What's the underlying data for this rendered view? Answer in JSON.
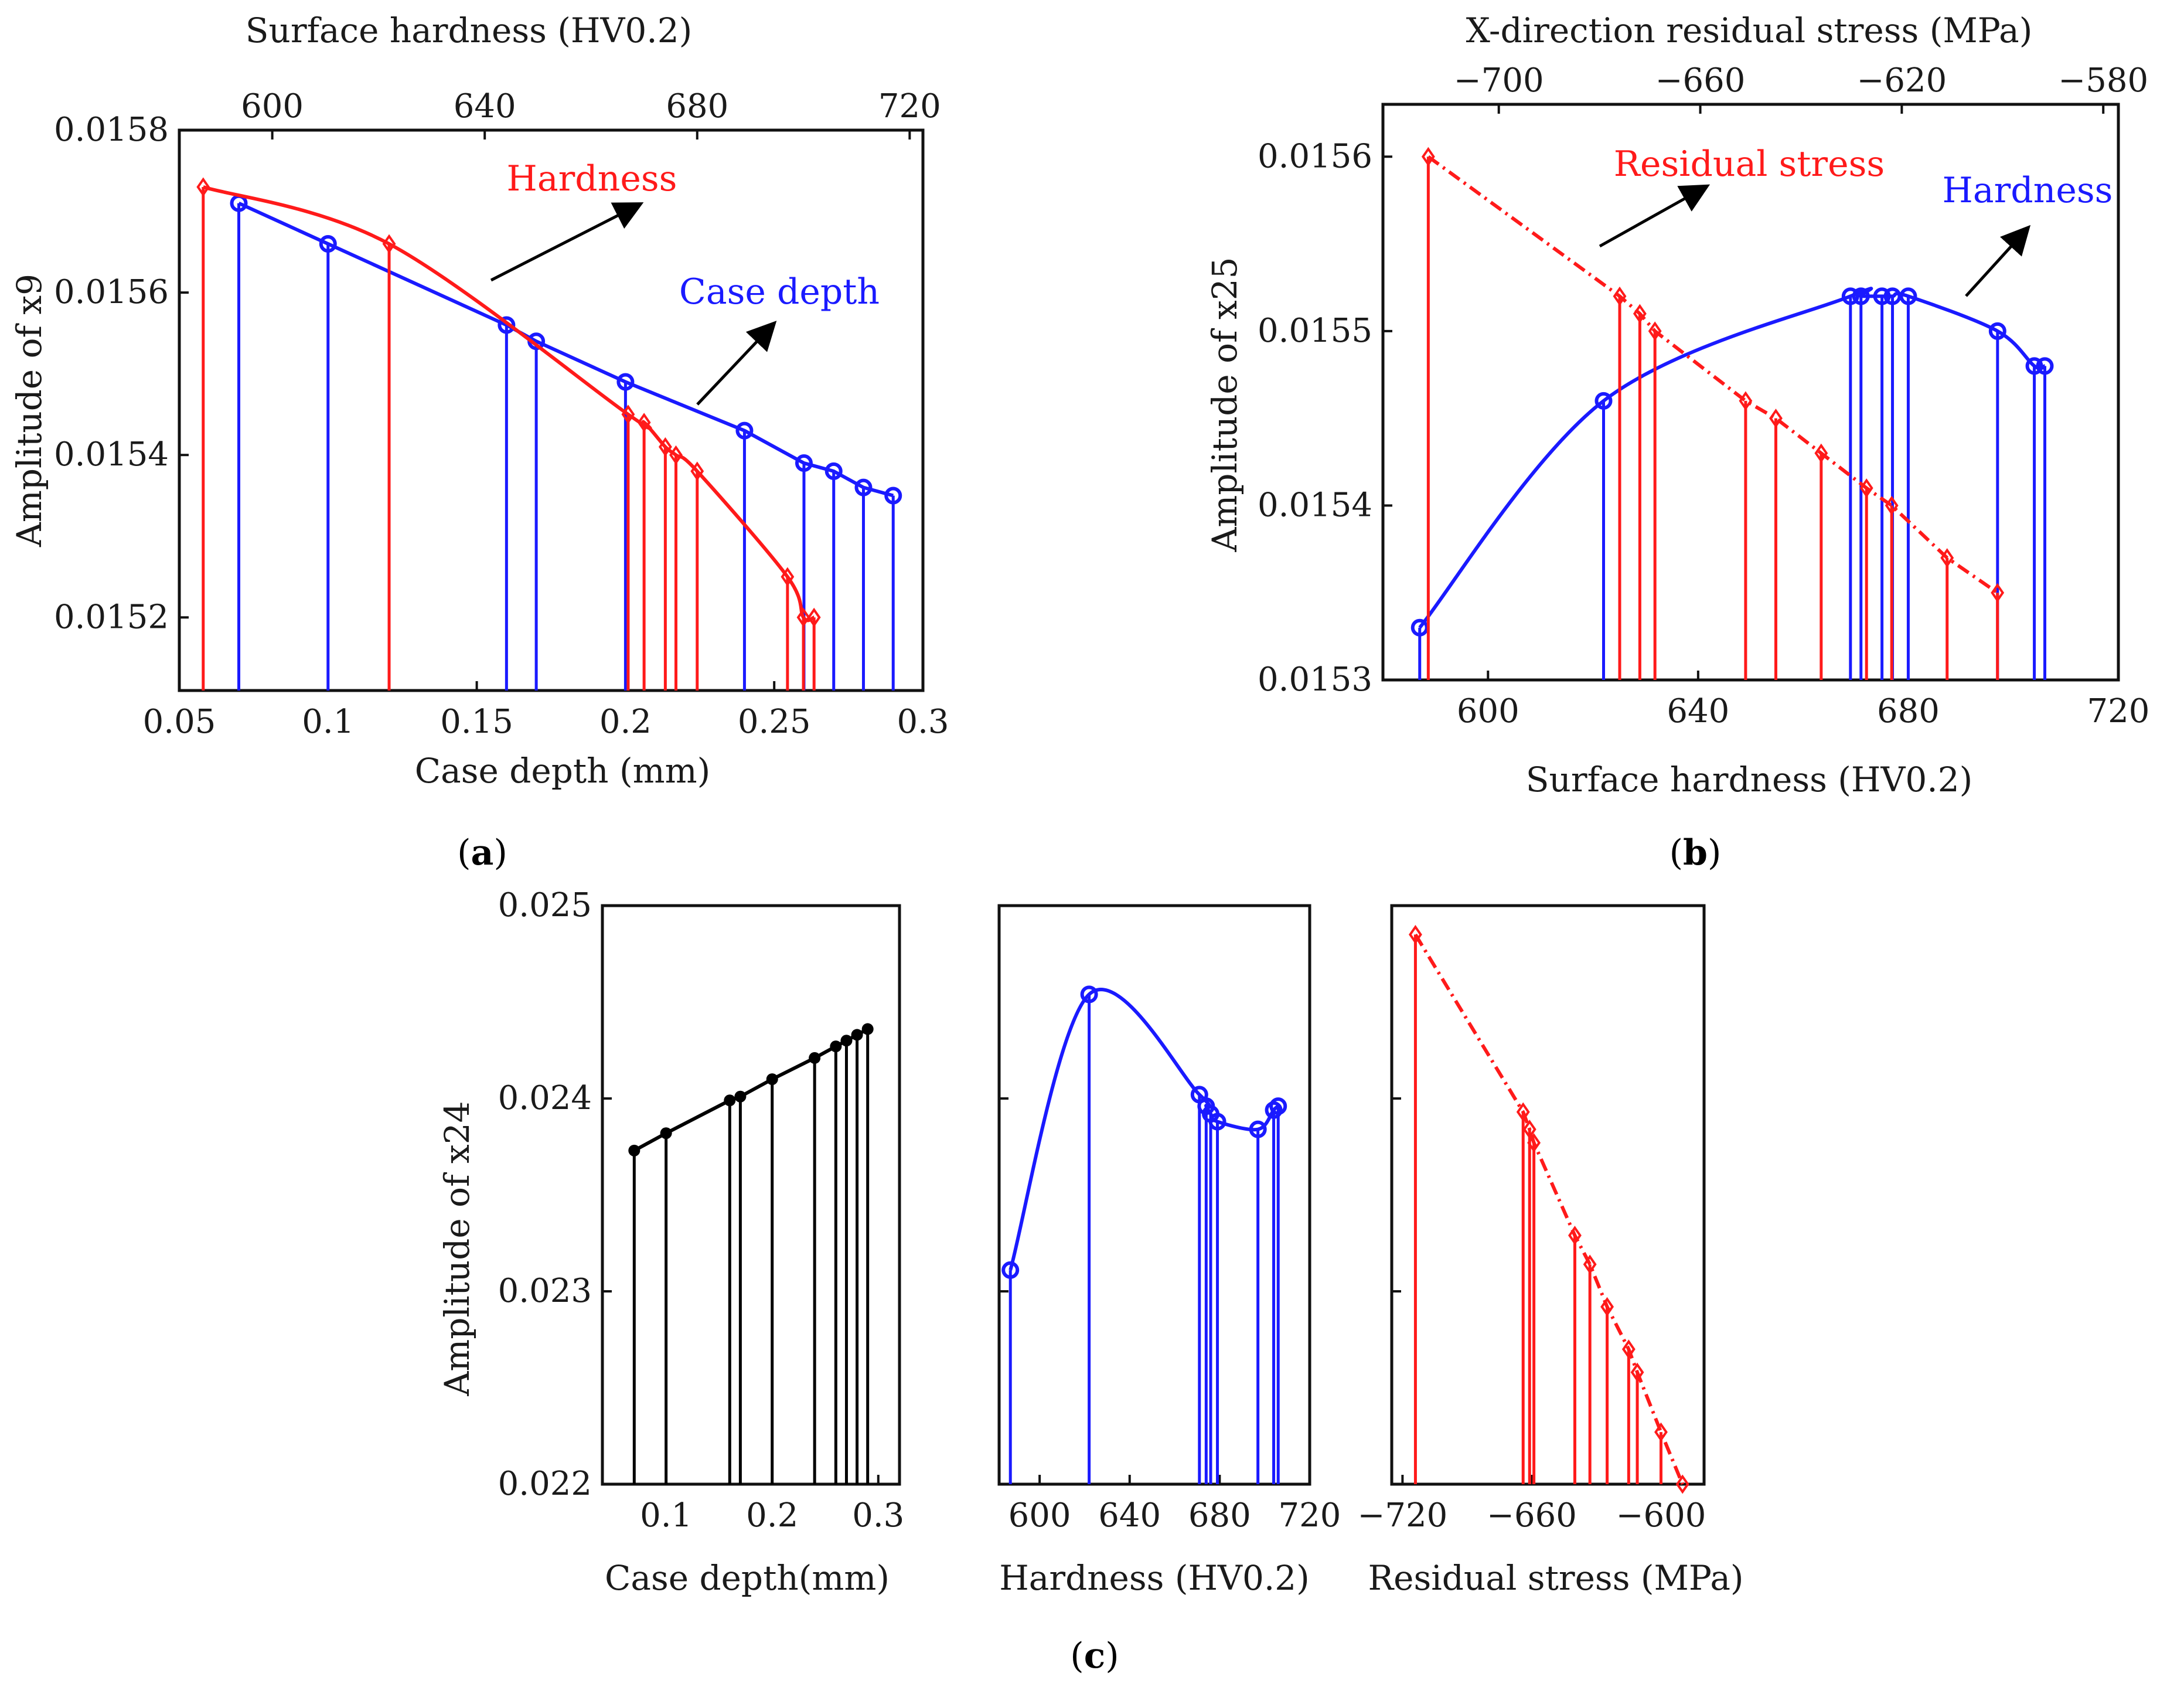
{
  "colors": {
    "red": "#ff1a1a",
    "blue": "#1a1aff",
    "black": "#000000"
  },
  "panels": {
    "a": {
      "label_paren_open": "(",
      "label_letter": "a",
      "label_paren_close": ")"
    },
    "b": {
      "label_paren_open": "(",
      "label_letter": "b",
      "label_paren_close": ")"
    },
    "c": {
      "label_paren_open": "(",
      "label_letter": "c",
      "label_paren_close": ")"
    }
  },
  "chart_data": [
    {
      "id": "a",
      "type": "line",
      "ylabel": "Amplitude of x9",
      "xlabel_bottom": "Case depth (mm)",
      "xlabel_top": "Surface hardness (HV0.2)",
      "xlim_bottom": [
        0.05,
        0.3
      ],
      "xlim_top": [
        582.5,
        722.5
      ],
      "ylim": [
        0.01511,
        0.0158
      ],
      "xticks_bottom": [
        "0.05",
        "0.1",
        "0.15",
        "0.2",
        "0.25",
        "0.3"
      ],
      "xticks_top": [
        "600",
        "640",
        "680",
        "720"
      ],
      "yticks": [
        "0.0152",
        "0.0154",
        "0.0156",
        "0.0158"
      ],
      "annotations": {
        "red": "Hardness",
        "blue": "Case depth"
      },
      "series": [
        {
          "name": "Case depth",
          "axis": "bottom",
          "color": "blue",
          "marker": "circle",
          "x": [
            0.07,
            0.1,
            0.16,
            0.17,
            0.2,
            0.24,
            0.26,
            0.27,
            0.28,
            0.29
          ],
          "y": [
            0.01571,
            0.01566,
            0.01556,
            0.01554,
            0.01549,
            0.01543,
            0.01539,
            0.01538,
            0.01536,
            0.01535
          ]
        },
        {
          "name": "Hardness",
          "axis": "top",
          "color": "red",
          "marker": "diamond",
          "x": [
            587,
            622,
            667,
            670,
            674,
            676,
            680,
            697,
            700,
            702
          ],
          "y": [
            0.01573,
            0.01566,
            0.01545,
            0.01544,
            0.01541,
            0.0154,
            0.01538,
            0.01525,
            0.0152,
            0.0152
          ]
        }
      ]
    },
    {
      "id": "b",
      "type": "line",
      "ylabel": "Amplitude of x25",
      "xlabel_bottom": "Surface hardness (HV0.2)",
      "xlabel_top": "X-direction residual stress (MPa)",
      "xlim_bottom": [
        580,
        720
      ],
      "xlim_top": [
        -723,
        -577
      ],
      "ylim": [
        0.0153,
        0.01563
      ],
      "xticks_bottom": [
        "600",
        "640",
        "680",
        "720"
      ],
      "xticks_top": [
        "−700",
        "−660",
        "−620",
        "−580"
      ],
      "yticks": [
        "0.0153",
        "0.0154",
        "0.0155",
        "0.0156"
      ],
      "annotations": {
        "red": "Residual stress",
        "blue": "Hardness"
      },
      "series": [
        {
          "name": "Hardness",
          "axis": "bottom",
          "color": "blue",
          "marker": "circle",
          "x": [
            587,
            622,
            669,
            671,
            675,
            677,
            680,
            697,
            704,
            706
          ],
          "y": [
            0.01533,
            0.01546,
            0.01552,
            0.01552,
            0.01552,
            0.01552,
            0.01552,
            0.0155,
            0.01548,
            0.01548
          ]
        },
        {
          "name": "Residual stress",
          "axis": "top",
          "color": "red",
          "marker": "diamond",
          "x": [
            -714,
            -676,
            -672,
            -669,
            -651,
            -645,
            -636,
            -627,
            -622,
            -611,
            -601
          ],
          "y": [
            0.0156,
            0.01552,
            0.01551,
            0.0155,
            0.01546,
            0.01545,
            0.01543,
            0.01541,
            0.0154,
            0.01537,
            0.01535
          ]
        }
      ]
    },
    {
      "id": "c1",
      "type": "line",
      "ylabel": "Amplitude of x24",
      "xlabel": "Case depth(mm)",
      "xlim": [
        0.04,
        0.32
      ],
      "ylim": [
        0.022,
        0.025
      ],
      "xticks": [
        "0.1",
        "0.2",
        "0.3"
      ],
      "yticks": [
        "0.022",
        "0.023",
        "0.024",
        "0.025"
      ],
      "series": [
        {
          "color": "black",
          "marker": "dot",
          "x": [
            0.07,
            0.1,
            0.16,
            0.17,
            0.2,
            0.24,
            0.26,
            0.27,
            0.28,
            0.29
          ],
          "y": [
            0.02373,
            0.02382,
            0.02399,
            0.02401,
            0.0241,
            0.02421,
            0.02427,
            0.0243,
            0.02433,
            0.02436
          ]
        }
      ]
    },
    {
      "id": "c2",
      "type": "line",
      "xlabel": "Hardness (HV0.2)",
      "xlim": [
        582,
        720
      ],
      "ylim": [
        0.022,
        0.025
      ],
      "xticks": [
        "600",
        "640",
        "680",
        "720"
      ],
      "series": [
        {
          "color": "blue",
          "marker": "circle",
          "x": [
            587,
            622,
            671,
            674,
            676,
            679,
            697,
            704,
            706
          ],
          "y": [
            0.02311,
            0.02454,
            0.02402,
            0.02396,
            0.02392,
            0.02388,
            0.02384,
            0.02394,
            0.02396
          ]
        }
      ]
    },
    {
      "id": "c3",
      "type": "line",
      "xlabel": "Residual stress (MPa)",
      "xlim": [
        -725,
        -580
      ],
      "ylim": [
        0.022,
        0.025
      ],
      "xticks": [
        "−720",
        "−660",
        "−600"
      ],
      "series": [
        {
          "color": "red",
          "marker": "diamond",
          "x": [
            -714,
            -664,
            -661,
            -659,
            -640,
            -633,
            -625,
            -615,
            -611,
            -600,
            -590
          ],
          "y": [
            0.02485,
            0.02393,
            0.02384,
            0.02377,
            0.02329,
            0.02314,
            0.02292,
            0.0227,
            0.02258,
            0.02227,
            0.022
          ]
        }
      ]
    }
  ]
}
